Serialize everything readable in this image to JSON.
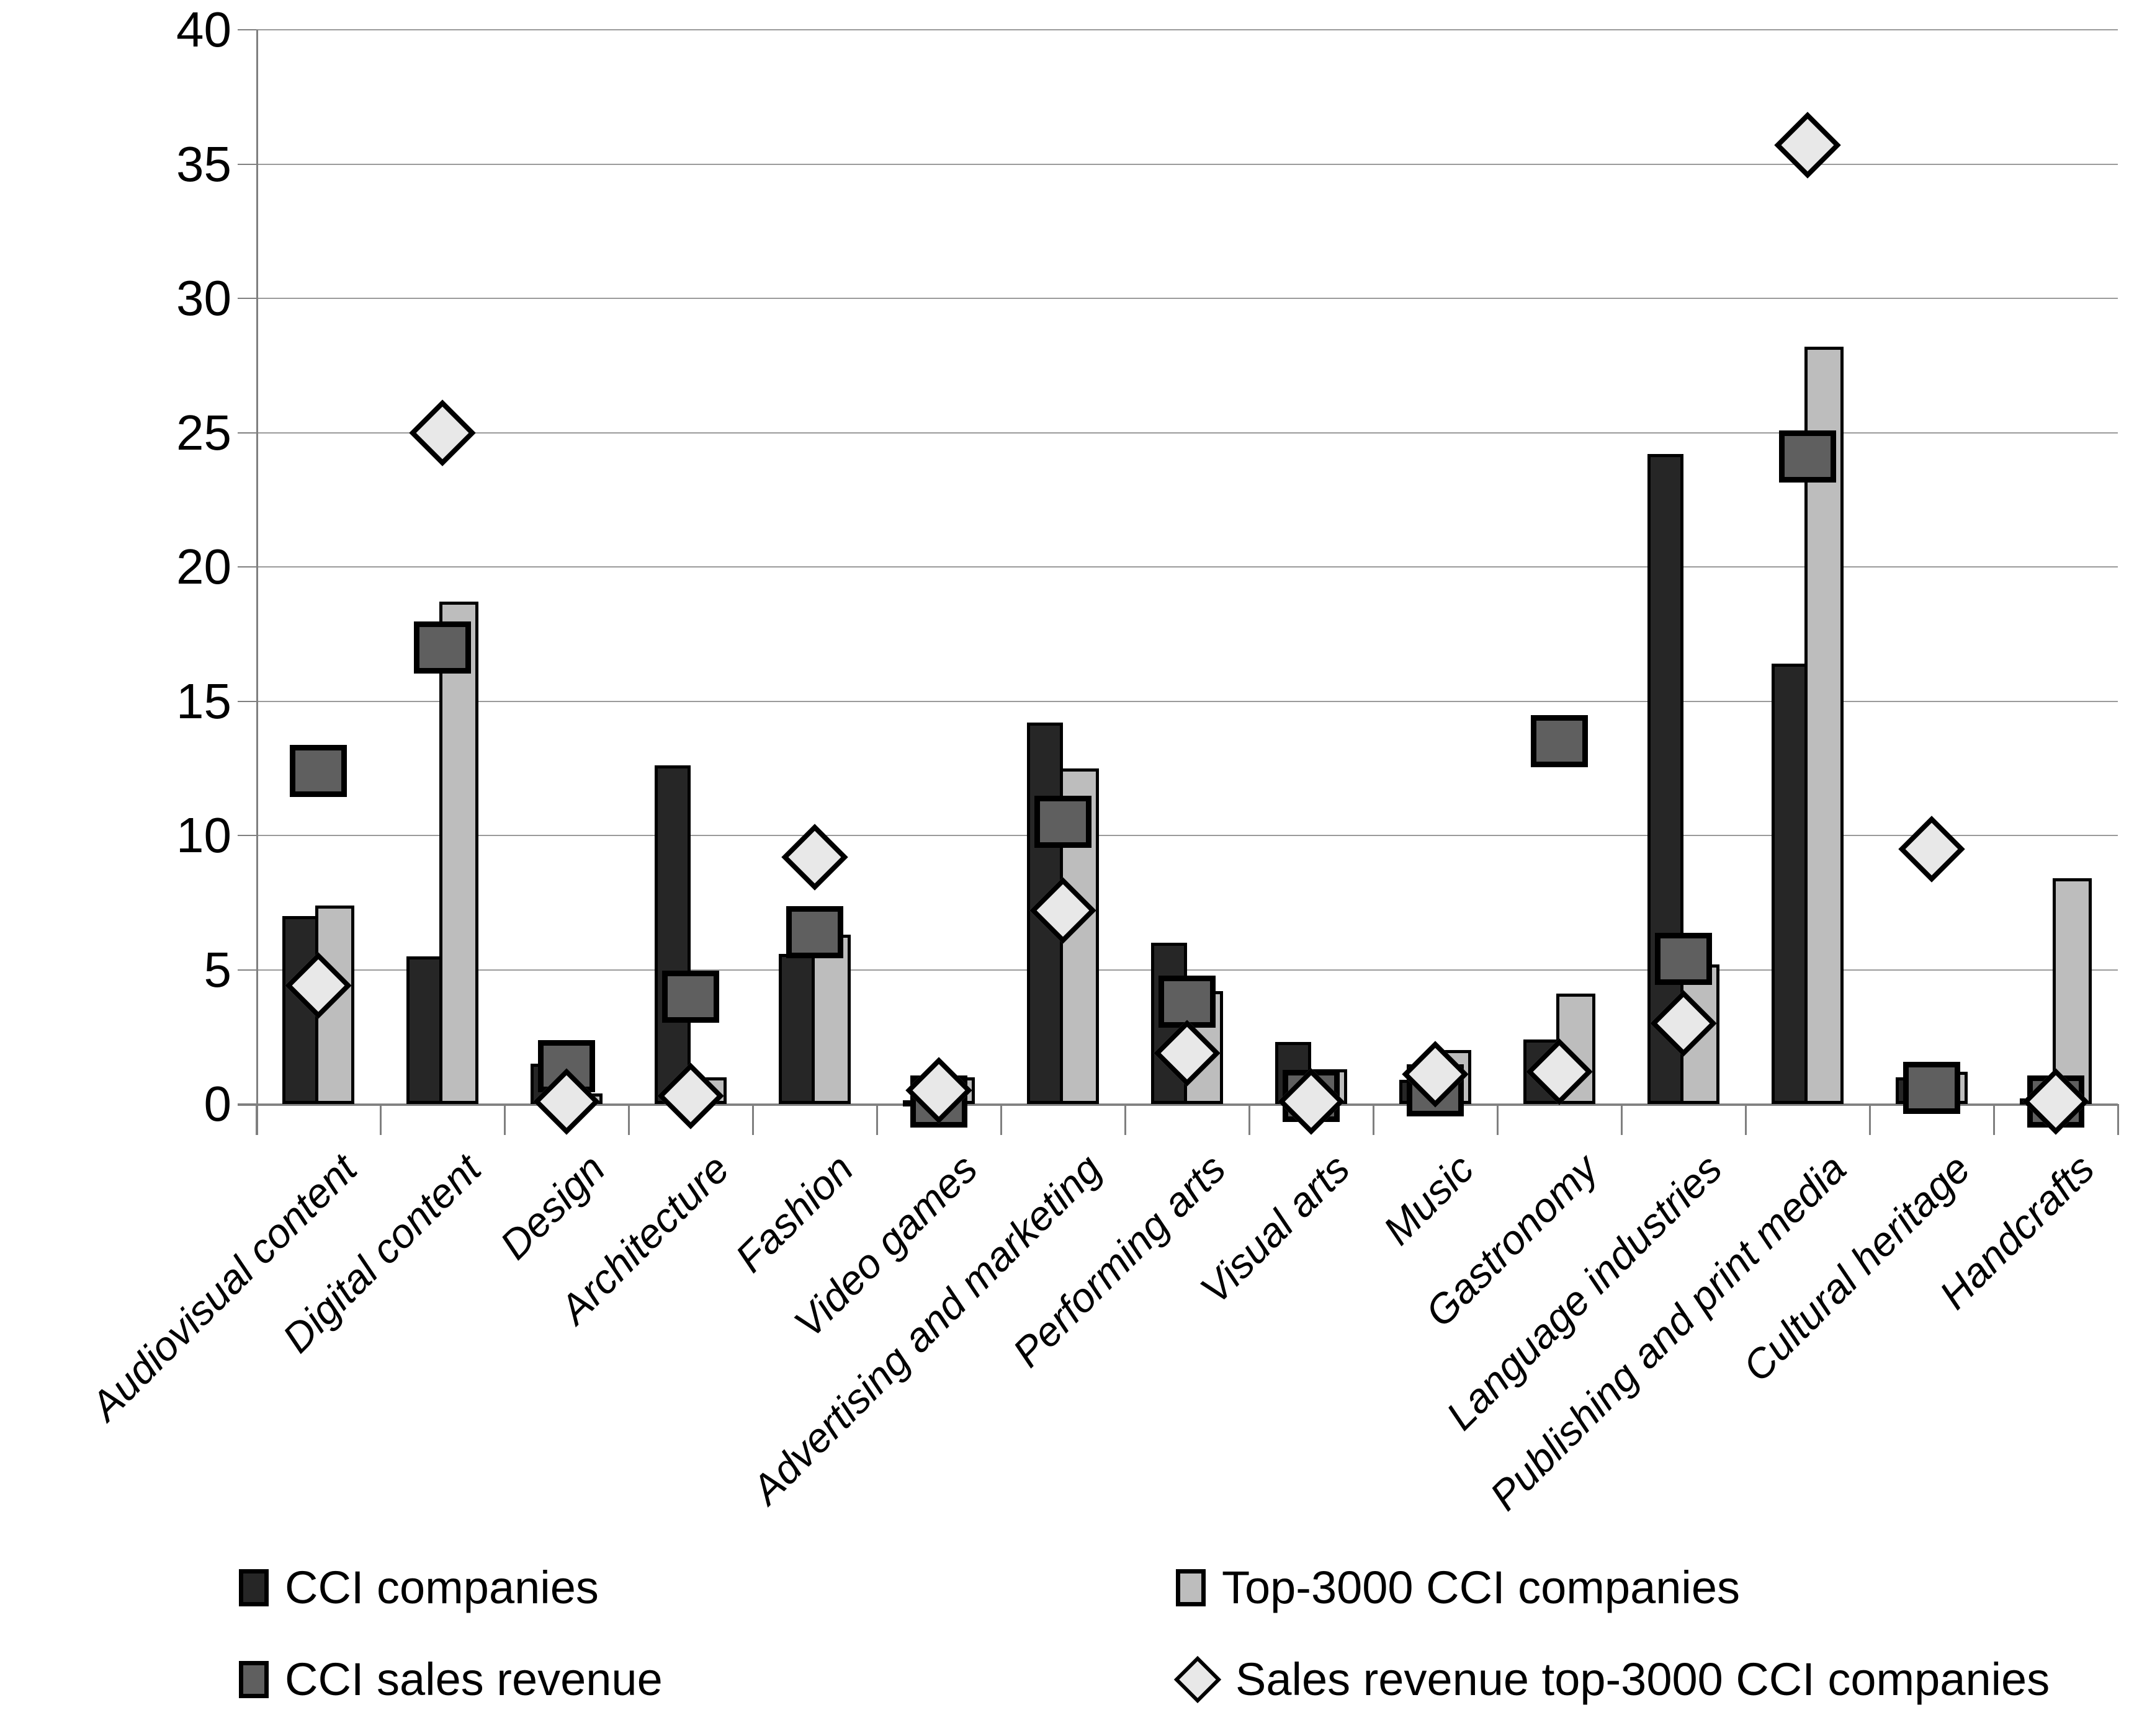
{
  "chart_data": {
    "type": "bar",
    "title": "",
    "xlabel": "",
    "ylabel": "",
    "ylim": [
      0,
      40
    ],
    "yticks": [
      0,
      5,
      10,
      15,
      20,
      25,
      30,
      35,
      40
    ],
    "grid": true,
    "legend_position": "bottom",
    "categories": [
      "Audiovisual content",
      "Digital content",
      "Design",
      "Architecture",
      "Fashion",
      "Video games",
      "Advertising and marketing",
      "Performing arts",
      "Visual arts",
      "Music",
      "Gastronomy",
      "Language industries",
      "Publishing and print media",
      "Cultural heritage",
      "Handcrafts"
    ],
    "series": [
      {
        "name": "CCI companies",
        "type": "bar",
        "color": "#262626",
        "values": [
          7.0,
          5.5,
          1.5,
          12.6,
          5.6,
          0.1,
          14.2,
          6.0,
          2.3,
          0.9,
          2.4,
          24.2,
          16.4,
          1.0,
          0.2
        ]
      },
      {
        "name": "Top-3000 CCI companies",
        "type": "bar",
        "color": "#bdbdbd",
        "values": [
          7.4,
          18.7,
          0.4,
          1.0,
          6.3,
          1.0,
          12.5,
          4.2,
          1.3,
          2.0,
          4.1,
          5.2,
          28.2,
          1.2,
          8.4
        ]
      },
      {
        "name": "CCI sales revenue",
        "type": "marker-square",
        "color": "#5f5f5f",
        "values": [
          12.4,
          17.0,
          1.4,
          4.0,
          6.4,
          0.1,
          10.5,
          3.8,
          0.3,
          0.5,
          13.5,
          5.4,
          24.1,
          0.6,
          0.1
        ]
      },
      {
        "name": "Sales revenue top-3000 CCI companies",
        "type": "marker-diamond",
        "color": "#e8e8e8",
        "values": [
          4.4,
          25.0,
          0.1,
          0.3,
          9.2,
          0.5,
          7.2,
          1.9,
          0.1,
          1.1,
          1.2,
          3.0,
          35.7,
          9.5,
          0.1
        ]
      }
    ],
    "colors": {
      "gridline": "#9a9a9a",
      "axis": "#7f7f7f",
      "bar_outline": "#000000",
      "background": "#ffffff"
    }
  },
  "legend": {
    "items": [
      {
        "label": "CCI companies",
        "swatch": "square-dark"
      },
      {
        "label": "Top-3000 CCI companies",
        "swatch": "square-light"
      },
      {
        "label": "CCI sales revenue",
        "swatch": "square-gray"
      },
      {
        "label": "Sales revenue top-3000 CCI companies",
        "swatch": "diamond-light"
      }
    ]
  }
}
